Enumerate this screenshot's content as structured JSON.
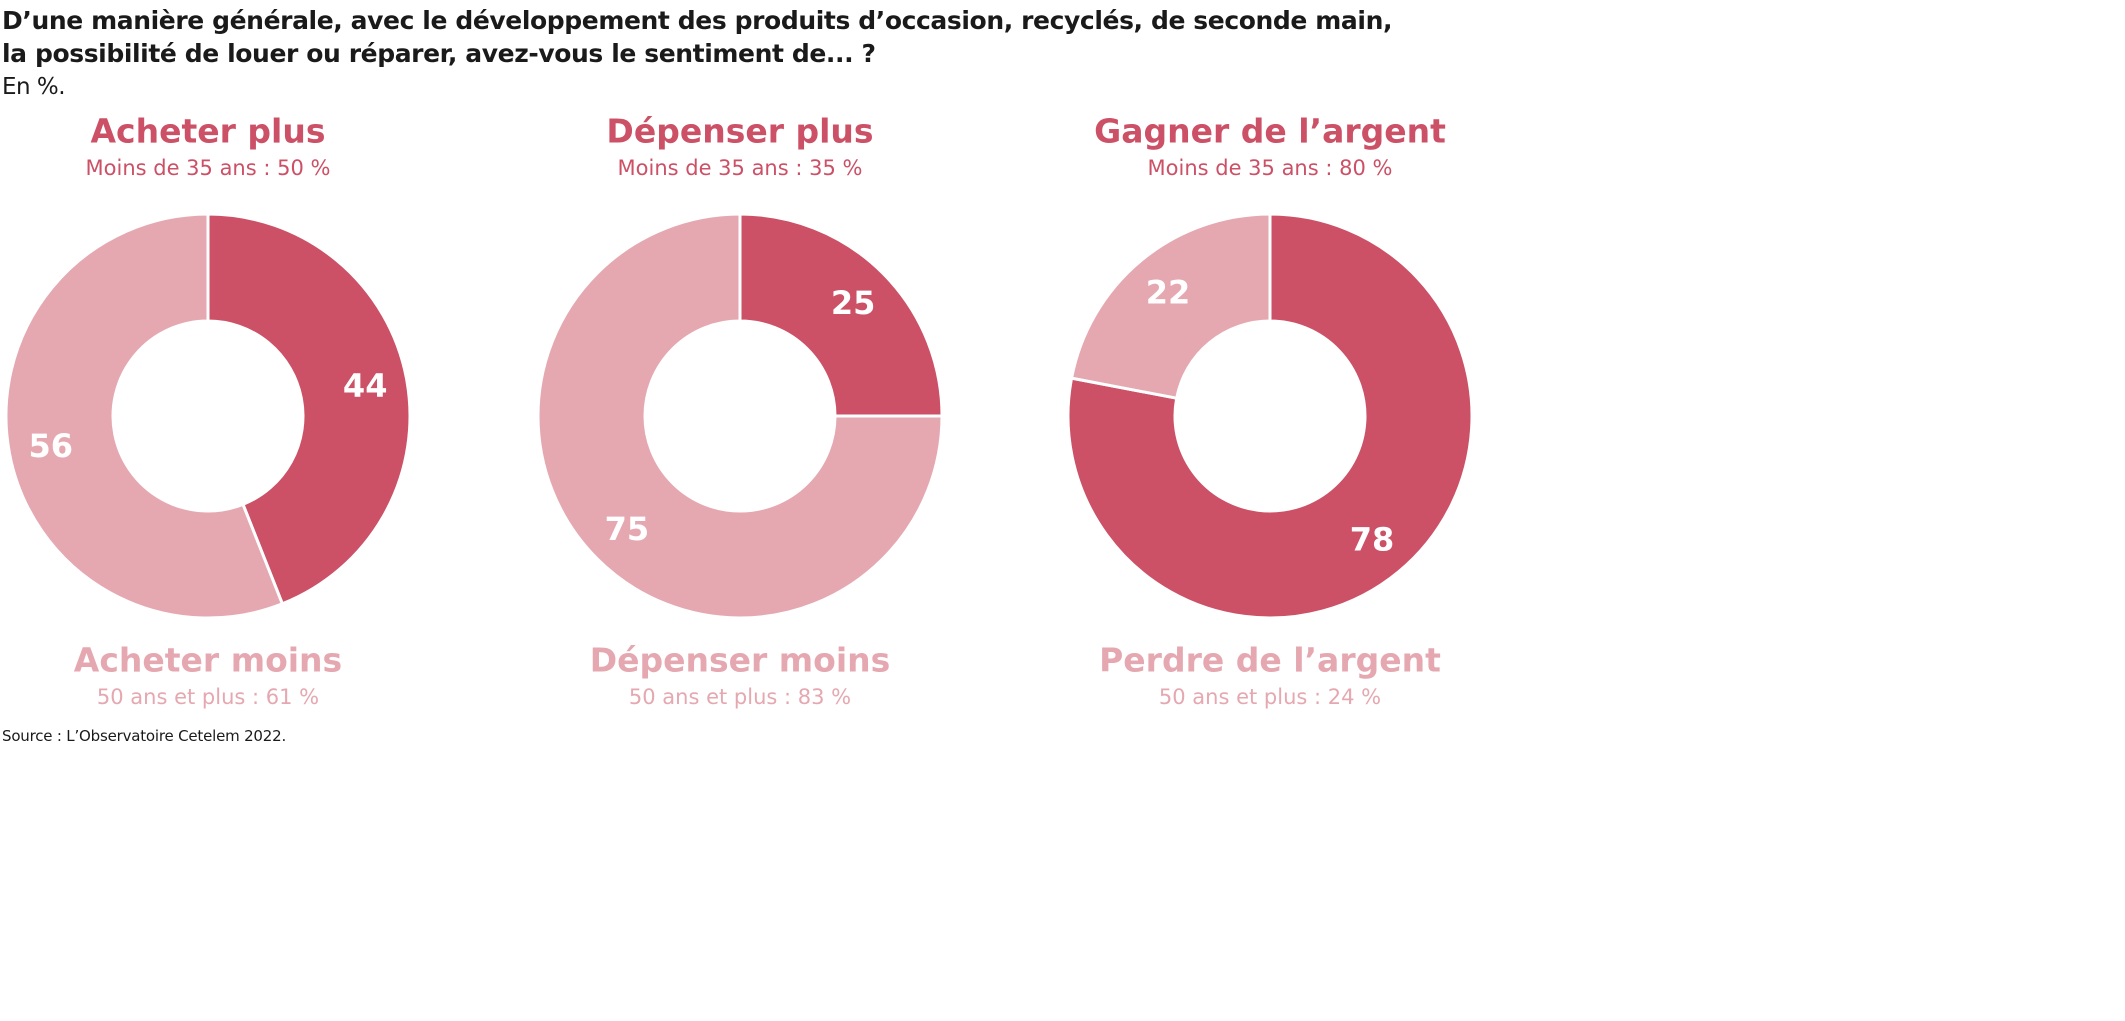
{
  "title_lines": [
    "D’une manière générale, avec le développement des produits d’occasion, recyclés, de seconde main,",
    "la possibilité de louer ou réparer, avez-vous le sentiment de... ?"
  ],
  "unit": "En %.",
  "source": "Source : L’Observatoire Cetelem 2022.",
  "colors": {
    "dark": "#cc5066",
    "light": "#e5a8b0",
    "text": "#1a1a1a",
    "value_label": "#ffffff"
  },
  "chart_data": [
    {
      "type": "pie",
      "donut": true,
      "top_label": "Acheter plus",
      "top_sublabel": "Moins de 35 ans : 50 %",
      "bottom_label": "Acheter moins",
      "bottom_sublabel": "50 ans et plus : 61 %",
      "slices": [
        {
          "name": "Acheter plus",
          "value": 44,
          "color": "dark"
        },
        {
          "name": "Acheter moins",
          "value": 56,
          "color": "light"
        }
      ]
    },
    {
      "type": "pie",
      "donut": true,
      "top_label": "Dépenser plus",
      "top_sublabel": "Moins de 35 ans : 35 %",
      "bottom_label": "Dépenser moins",
      "bottom_sublabel": "50 ans et plus : 83 %",
      "slices": [
        {
          "name": "Dépenser plus",
          "value": 25,
          "color": "dark"
        },
        {
          "name": "Dépenser moins",
          "value": 75,
          "color": "light"
        }
      ]
    },
    {
      "type": "pie",
      "donut": true,
      "top_label": "Gagner de l’argent",
      "top_sublabel": "Moins de 35 ans : 80 %",
      "bottom_label": "Perdre de l’argent",
      "bottom_sublabel": "50 ans et plus : 24 %",
      "slices": [
        {
          "name": "Gagner de l’argent",
          "value": 78,
          "color": "dark"
        },
        {
          "name": "Perdre de l’argent",
          "value": 22,
          "color": "light"
        }
      ]
    }
  ]
}
